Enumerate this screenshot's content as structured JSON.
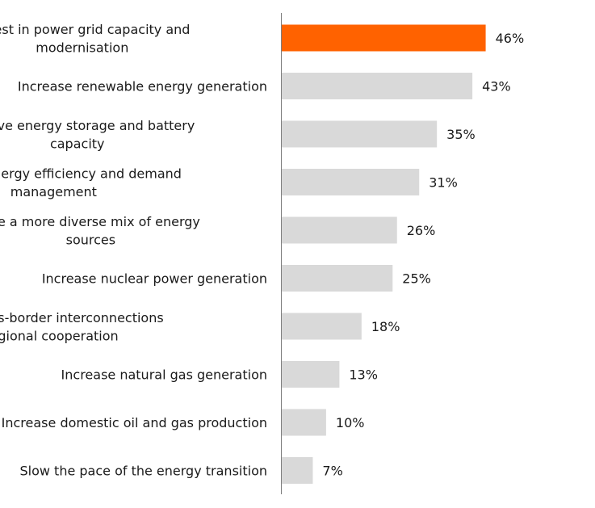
{
  "chart_data": {
    "type": "bar",
    "orientation": "horizontal",
    "title": "",
    "xlabel": "",
    "ylabel": "",
    "xlim": [
      0,
      55
    ],
    "value_suffix": "%",
    "categories": [
      [
        "Invest in power grid capacity and",
        "modernisation"
      ],
      [
        "Increase renewable energy generation"
      ],
      [
        "Improve energy storage and battery",
        "capacity"
      ],
      [
        "Invest in energy efficiency and demand",
        "management"
      ],
      [
        "Use a more diverse mix of energy",
        "sources"
      ],
      [
        "Increase nuclear power generation"
      ],
      [
        "Enhance cross-border interconnections",
        "and regional cooperation"
      ],
      [
        "Increase natural gas generation"
      ],
      [
        "Increase domestic oil and gas production"
      ],
      [
        "Slow the pace of the energy transition"
      ]
    ],
    "values": [
      46,
      43,
      35,
      31,
      26,
      25,
      18,
      13,
      10,
      7
    ],
    "highlight_index": 0,
    "colors": {
      "highlight": "#FF6200",
      "default": "#D9D9D9",
      "axis": "#7F7F7F",
      "text": "#1A1A1A"
    }
  }
}
